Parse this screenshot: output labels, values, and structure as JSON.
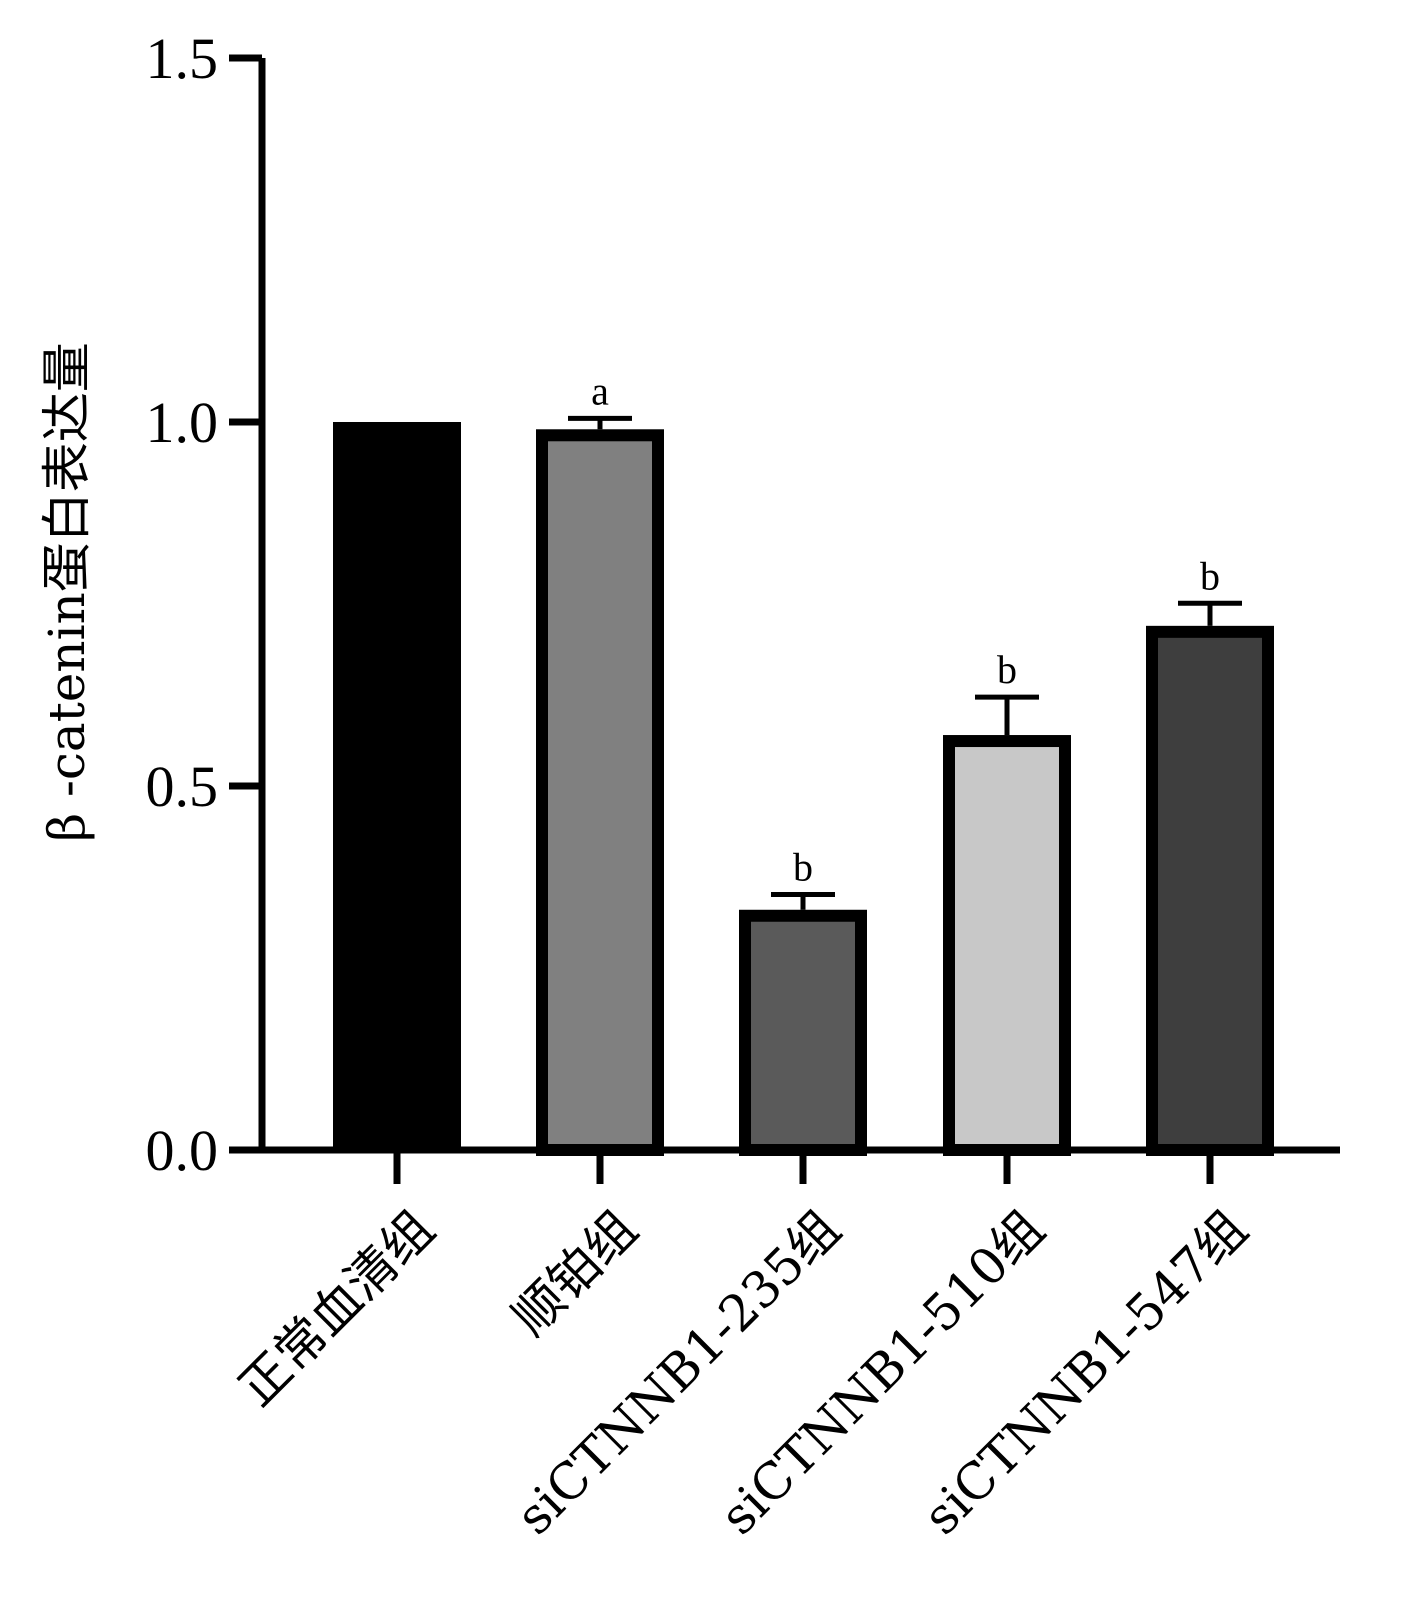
{
  "chart_data": {
    "type": "bar",
    "title": "",
    "xlabel": "",
    "ylabel": "β -catenin蛋白表达量",
    "ylim": [
      0,
      1.5
    ],
    "yticks": [
      "0.0",
      "0.5",
      "1.0",
      "1.5"
    ],
    "ytick_values": [
      0,
      0.5,
      1.0,
      1.5
    ],
    "grid": false,
    "categories": [
      "正常血清组",
      "顺铂组",
      "siCTNNB1-235组",
      "siCTNNB1-510组",
      "siCTNNB1-547组"
    ],
    "values": [
      1.0,
      0.99,
      0.33,
      0.57,
      0.72
    ],
    "errors": [
      0,
      0.015,
      0.021,
      0.052,
      0.031
    ],
    "significance": [
      "",
      "a",
      "b",
      "b",
      "b"
    ],
    "colors": [
      "#000000",
      "#808080",
      "#5a5a5a",
      "#c8c8c8",
      "#3e3e3e"
    ]
  }
}
